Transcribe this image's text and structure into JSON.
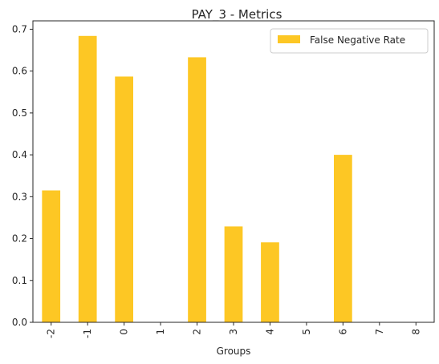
{
  "chart_data": {
    "type": "bar",
    "title": "PAY_3 - Metrics",
    "xlabel": "Groups",
    "ylabel": "",
    "categories": [
      "-2",
      "-1",
      "0",
      "1",
      "2",
      "3",
      "4",
      "5",
      "6",
      "7",
      "8"
    ],
    "series": [
      {
        "name": "False Negative Rate",
        "values": [
          0.315,
          0.684,
          0.587,
          0.0,
          0.633,
          0.229,
          0.191,
          0.0,
          0.4,
          0.0,
          0.0
        ]
      }
    ],
    "ylim": [
      0,
      0.72
    ],
    "yticks": [
      "0.0",
      "0.1",
      "0.2",
      "0.3",
      "0.4",
      "0.5",
      "0.6",
      "0.7"
    ],
    "grid": false,
    "legend_position": "top-right",
    "bar_color": "#fdc724"
  }
}
